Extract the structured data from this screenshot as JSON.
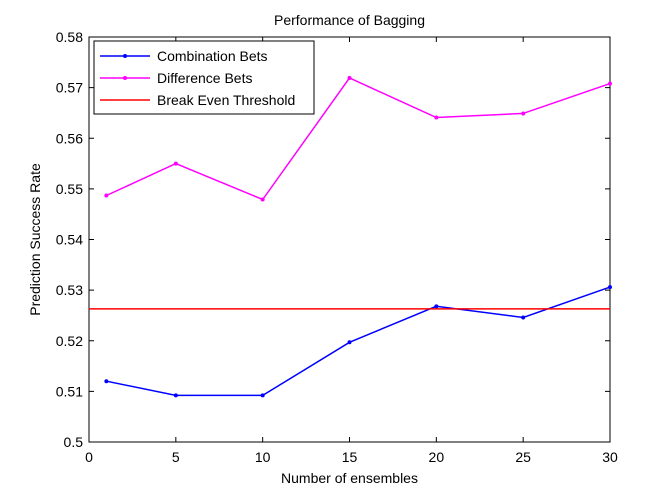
{
  "chart_data": {
    "type": "line",
    "title": "Performance of Bagging",
    "xlabel": "Number of ensembles",
    "ylabel": "Prediction Success Rate",
    "xlim": [
      0,
      30
    ],
    "ylim": [
      0.5,
      0.58
    ],
    "xticks": [
      0,
      5,
      10,
      15,
      20,
      25,
      30
    ],
    "yticks": [
      0.5,
      0.51,
      0.52,
      0.53,
      0.54,
      0.55,
      0.56,
      0.57,
      0.58
    ],
    "ytick_labels": [
      "0.5",
      "0.51",
      "0.52",
      "0.53",
      "0.54",
      "0.55",
      "0.56",
      "0.57",
      "0.58"
    ],
    "grid": false,
    "legend_position": "top-left",
    "series": [
      {
        "name": "Combination Bets",
        "color": "#0000ff",
        "marker": "point",
        "x": [
          1,
          5,
          10,
          15,
          20,
          25,
          30
        ],
        "y": [
          0.512,
          0.5092,
          0.5092,
          0.5197,
          0.5268,
          0.5246,
          0.5306
        ]
      },
      {
        "name": "Difference Bets",
        "color": "#ff00ff",
        "marker": "point",
        "x": [
          1,
          5,
          10,
          15,
          20,
          25,
          30
        ],
        "y": [
          0.5487,
          0.555,
          0.5479,
          0.5719,
          0.5641,
          0.5649,
          0.5708
        ]
      },
      {
        "name": "Break Even Threshold",
        "color": "#ff0000",
        "marker": "none",
        "x": [
          0,
          30
        ],
        "y": [
          0.5263,
          0.5263
        ]
      }
    ]
  }
}
